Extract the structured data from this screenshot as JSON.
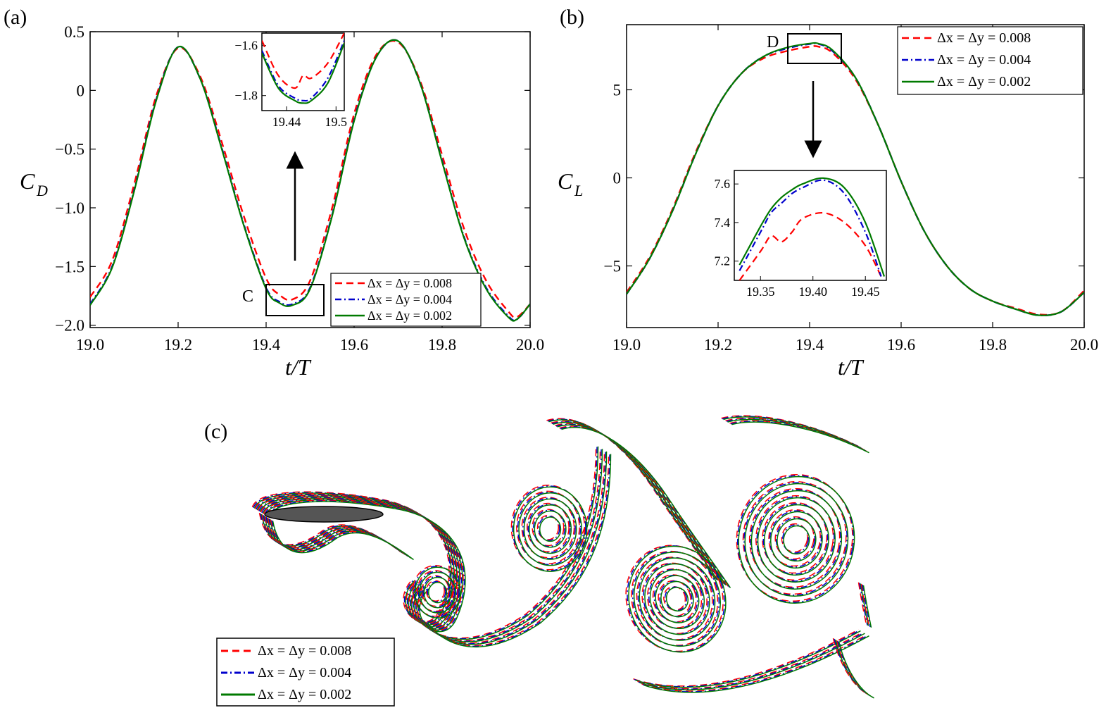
{
  "colors": {
    "dx008": "#ff0000",
    "dx004": "#0000cc",
    "dx002": "#007a00"
  },
  "legend_labels": [
    "Δx = Δy  = 0.008",
    "Δx = Δy  = 0.004",
    "Δx = Δy  = 0.002"
  ],
  "panels": {
    "a": {
      "label": "(a)",
      "xlabel": "t/T",
      "ylabel_main": "C",
      "ylabel_sub": "D",
      "zoom_label": "C"
    },
    "b": {
      "label": "(b)",
      "xlabel": "t/T",
      "ylabel_main": "C",
      "ylabel_sub": "L",
      "zoom_label": "D"
    },
    "c": {
      "label": "(c)"
    }
  },
  "chart_data": [
    {
      "id": "a",
      "type": "line",
      "xlabel": "t/T",
      "ylabel": "C_D",
      "xlim": [
        19.0,
        20.0
      ],
      "ylim": [
        -2.02,
        0.5
      ],
      "xticks": [
        19.0,
        19.2,
        19.4,
        19.6,
        19.8,
        20.0
      ],
      "xtick_labels": [
        "19.0",
        "19.2",
        "19.4",
        "19.6",
        "19.8",
        "20.0"
      ],
      "yticks": [
        -2.0,
        -1.5,
        -1.0,
        -0.5,
        0,
        0.5
      ],
      "ytick_labels": [
        "−2.0",
        "−1.5",
        "−1.0",
        "−0.5",
        "0",
        "0.5"
      ],
      "legend_position": "bottom-right",
      "series": [
        {
          "name": "Δx = Δy  = 0.008",
          "style": "dashed",
          "x": [
            19.0,
            19.05,
            19.1,
            19.15,
            19.2,
            19.25,
            19.3,
            19.35,
            19.4,
            19.43,
            19.46,
            19.5,
            19.55,
            19.6,
            19.65,
            19.7,
            19.75,
            19.8,
            19.85,
            19.9,
            19.95,
            19.97,
            20.0
          ],
          "y": [
            -1.76,
            -1.45,
            -0.8,
            -0.05,
            0.36,
            0.12,
            -0.45,
            -1.08,
            -1.6,
            -1.74,
            -1.78,
            -1.62,
            -1.0,
            -0.2,
            0.3,
            0.41,
            0.08,
            -0.55,
            -1.18,
            -1.62,
            -1.88,
            -1.93,
            -1.82
          ]
        },
        {
          "name": "Δx = Δy  = 0.004",
          "style": "dashdot",
          "x": [
            19.0,
            19.05,
            19.1,
            19.15,
            19.2,
            19.25,
            19.3,
            19.35,
            19.4,
            19.43,
            19.46,
            19.5,
            19.55,
            19.6,
            19.65,
            19.7,
            19.75,
            19.8,
            19.85,
            19.9,
            19.95,
            19.97,
            20.0
          ],
          "y": [
            -1.82,
            -1.5,
            -0.85,
            -0.08,
            0.37,
            0.1,
            -0.5,
            -1.15,
            -1.68,
            -1.8,
            -1.82,
            -1.68,
            -1.06,
            -0.25,
            0.28,
            0.42,
            0.06,
            -0.6,
            -1.25,
            -1.68,
            -1.92,
            -1.95,
            -1.82
          ]
        },
        {
          "name": "Δx = Δy  = 0.002",
          "style": "solid",
          "x": [
            19.0,
            19.05,
            19.1,
            19.15,
            19.2,
            19.25,
            19.3,
            19.35,
            19.4,
            19.43,
            19.46,
            19.5,
            19.55,
            19.6,
            19.65,
            19.7,
            19.75,
            19.8,
            19.85,
            19.9,
            19.95,
            19.97,
            20.0
          ],
          "y": [
            -1.83,
            -1.51,
            -0.86,
            -0.09,
            0.37,
            0.1,
            -0.51,
            -1.16,
            -1.69,
            -1.81,
            -1.83,
            -1.69,
            -1.07,
            -0.26,
            0.28,
            0.42,
            0.06,
            -0.61,
            -1.26,
            -1.69,
            -1.93,
            -1.95,
            -1.82
          ]
        }
      ],
      "inset": {
        "xlim": [
          19.41,
          19.51
        ],
        "ylim": [
          -1.86,
          -1.55
        ],
        "xticks": [
          19.44,
          19.5
        ],
        "xtick_labels": [
          "19.44",
          "19.5"
        ],
        "yticks": [
          -1.8,
          -1.6
        ],
        "ytick_labels": [
          "−1.8",
          "−1.6"
        ],
        "series": [
          {
            "x": [
              19.41,
              19.43,
              19.45,
              19.46,
              19.47,
              19.49,
              19.51
            ],
            "y": [
              -1.58,
              -1.72,
              -1.77,
              -1.72,
              -1.73,
              -1.67,
              -1.55
            ]
          },
          {
            "x": [
              19.41,
              19.43,
              19.45,
              19.46,
              19.47,
              19.49,
              19.51
            ],
            "y": [
              -1.62,
              -1.76,
              -1.81,
              -1.82,
              -1.81,
              -1.73,
              -1.58
            ]
          },
          {
            "x": [
              19.41,
              19.43,
              19.45,
              19.46,
              19.47,
              19.49,
              19.51
            ],
            "y": [
              -1.63,
              -1.77,
              -1.82,
              -1.83,
              -1.82,
              -1.75,
              -1.59
            ]
          }
        ]
      }
    },
    {
      "id": "b",
      "type": "line",
      "xlabel": "t/T",
      "ylabel": "C_L",
      "xlim": [
        19.0,
        20.0
      ],
      "ylim": [
        -8.5,
        8.7
      ],
      "xticks": [
        19.0,
        19.2,
        19.4,
        19.6,
        19.8,
        20.0
      ],
      "xtick_labels": [
        "19.0",
        "19.2",
        "19.4",
        "19.6",
        "19.8",
        "20.0"
      ],
      "yticks": [
        -5,
        0,
        5
      ],
      "ytick_labels": [
        "−5",
        "0",
        "5"
      ],
      "legend_position": "top-right",
      "series": [
        {
          "name": "Δx = Δy  = 0.008",
          "style": "dashed",
          "x": [
            19.0,
            19.05,
            19.1,
            19.15,
            19.2,
            19.25,
            19.3,
            19.35,
            19.4,
            19.42,
            19.45,
            19.5,
            19.55,
            19.6,
            19.65,
            19.7,
            19.75,
            19.8,
            19.85,
            19.9,
            19.95,
            20.0
          ],
          "y": [
            -6.5,
            -4.5,
            -1.8,
            1.4,
            4.1,
            5.9,
            6.8,
            7.2,
            7.45,
            7.45,
            7.1,
            5.6,
            3.0,
            -0.2,
            -3.0,
            -5.0,
            -6.3,
            -7.0,
            -7.4,
            -7.75,
            -7.6,
            -6.4
          ]
        },
        {
          "name": "Δx = Δy  = 0.004",
          "style": "dashdot",
          "x": [
            19.0,
            19.05,
            19.1,
            19.15,
            19.2,
            19.25,
            19.3,
            19.35,
            19.4,
            19.42,
            19.45,
            19.5,
            19.55,
            19.6,
            19.65,
            19.7,
            19.75,
            19.8,
            19.85,
            19.9,
            19.95,
            20.0
          ],
          "y": [
            -6.6,
            -4.6,
            -1.9,
            1.3,
            4.1,
            5.9,
            6.9,
            7.35,
            7.6,
            7.6,
            7.2,
            5.7,
            3.0,
            -0.2,
            -3.0,
            -5.0,
            -6.3,
            -7.0,
            -7.45,
            -7.8,
            -7.6,
            -6.5
          ]
        },
        {
          "name": "Δx = Δy  = 0.002",
          "style": "solid",
          "x": [
            19.0,
            19.05,
            19.1,
            19.15,
            19.2,
            19.25,
            19.3,
            19.35,
            19.4,
            19.42,
            19.45,
            19.5,
            19.55,
            19.6,
            19.65,
            19.7,
            19.75,
            19.8,
            19.85,
            19.9,
            19.95,
            20.0
          ],
          "y": [
            -6.6,
            -4.6,
            -1.9,
            1.3,
            4.1,
            5.9,
            6.9,
            7.4,
            7.63,
            7.62,
            7.25,
            5.7,
            3.0,
            -0.2,
            -3.0,
            -5.0,
            -6.3,
            -7.0,
            -7.45,
            -7.8,
            -7.6,
            -6.5
          ]
        }
      ],
      "inset": {
        "xlim": [
          19.325,
          19.47
        ],
        "ylim": [
          7.1,
          7.67
        ],
        "xticks": [
          19.35,
          19.4,
          19.45
        ],
        "xtick_labels": [
          "19.35",
          "19.40",
          "19.45"
        ],
        "yticks": [
          7.2,
          7.4,
          7.6
        ],
        "ytick_labels": [
          "7.2",
          "7.4",
          "7.6"
        ],
        "series": [
          {
            "x": [
              19.33,
              19.35,
              19.36,
              19.37,
              19.38,
              19.39,
              19.41,
              19.43,
              19.45,
              19.465
            ],
            "y": [
              7.1,
              7.25,
              7.33,
              7.3,
              7.35,
              7.42,
              7.45,
              7.4,
              7.28,
              7.12
            ]
          },
          {
            "x": [
              19.33,
              19.35,
              19.36,
              19.37,
              19.38,
              19.39,
              19.41,
              19.43,
              19.45,
              19.465
            ],
            "y": [
              7.15,
              7.35,
              7.45,
              7.5,
              7.55,
              7.58,
              7.62,
              7.55,
              7.35,
              7.12
            ]
          },
          {
            "x": [
              19.33,
              19.35,
              19.36,
              19.37,
              19.38,
              19.39,
              19.41,
              19.43,
              19.45,
              19.468
            ],
            "y": [
              7.18,
              7.38,
              7.47,
              7.53,
              7.57,
              7.6,
              7.63,
              7.58,
              7.4,
              7.12
            ]
          }
        ]
      }
    }
  ]
}
